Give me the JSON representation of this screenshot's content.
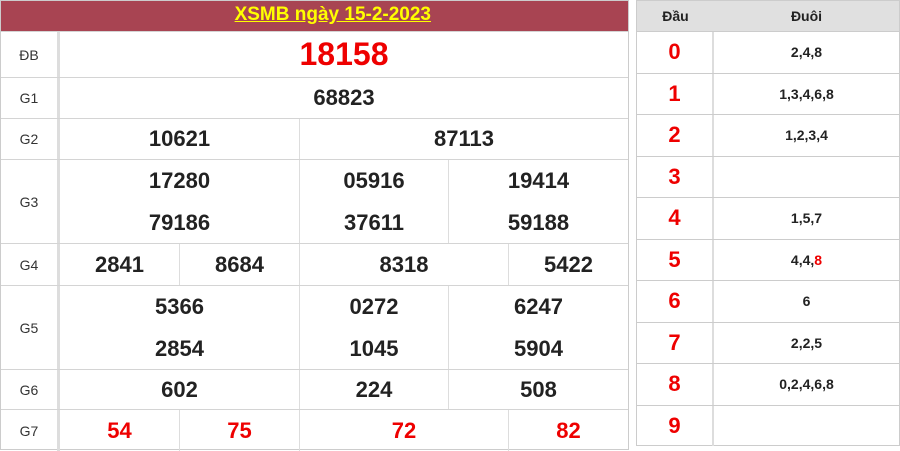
{
  "title": "XSMB ngày 15-2-2023",
  "prizes": {
    "db": {
      "label": "ĐB",
      "numbers": [
        "18158"
      ]
    },
    "g1": {
      "label": "G1",
      "numbers": [
        "68823"
      ]
    },
    "g2": {
      "label": "G2",
      "numbers": [
        "10621",
        "87113"
      ]
    },
    "g3": {
      "label": "G3",
      "numbers": [
        "17280",
        "05916",
        "19414",
        "79186",
        "37611",
        "59188"
      ]
    },
    "g4": {
      "label": "G4",
      "numbers": [
        "2841",
        "8684",
        "8318",
        "5422"
      ]
    },
    "g5": {
      "label": "G5",
      "numbers": [
        "5366",
        "0272",
        "6247",
        "2854",
        "1045",
        "5904"
      ]
    },
    "g6": {
      "label": "G6",
      "numbers": [
        "602",
        "224",
        "508"
      ]
    },
    "g7": {
      "label": "G7",
      "numbers": [
        "54",
        "75",
        "72",
        "82"
      ]
    }
  },
  "loto": {
    "head_label": "Đầu",
    "tail_label": "Đuôi",
    "rows": [
      {
        "head": "0",
        "tail": "2,4,8"
      },
      {
        "head": "1",
        "tail": "1,3,4,6,8"
      },
      {
        "head": "2",
        "tail": "1,2,3,4"
      },
      {
        "head": "3",
        "tail": ""
      },
      {
        "head": "4",
        "tail": "1,5,7"
      },
      {
        "head": "5",
        "tail": "4,4,",
        "tail_highlight": "8"
      },
      {
        "head": "6",
        "tail": "6"
      },
      {
        "head": "7",
        "tail": "2,2,5"
      },
      {
        "head": "8",
        "tail": "0,2,4,6,8"
      },
      {
        "head": "9",
        "tail": ""
      }
    ]
  },
  "colors": {
    "header": "#a84452",
    "title": "#ffff00",
    "special": "#ee0000"
  }
}
